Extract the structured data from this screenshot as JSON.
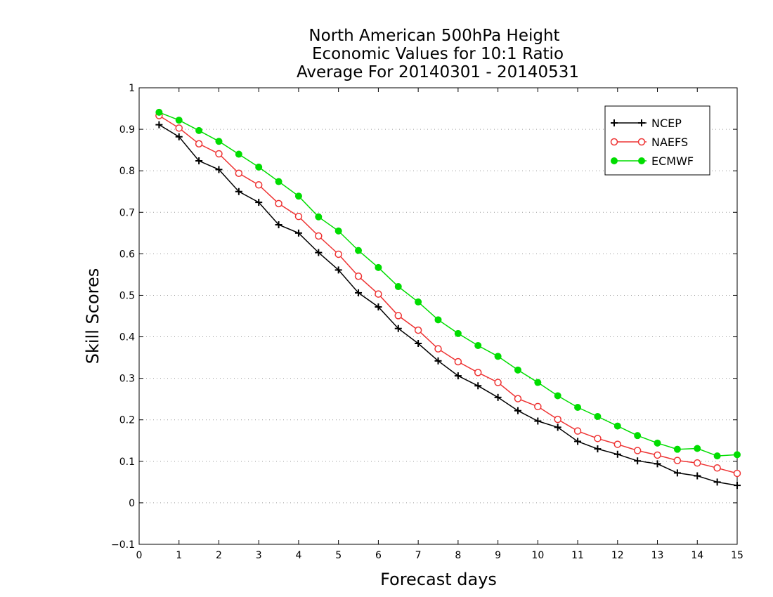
{
  "chart_data": {
    "type": "line",
    "title": [
      "North American 500hPa Height",
      "Economic Values for 10:1 Ratio",
      "Average For 20140301 - 20140531"
    ],
    "xlabel": "Forecast days",
    "ylabel": "Skill Scores",
    "xlim": [
      0,
      15
    ],
    "ylim": [
      -0.1,
      1
    ],
    "xticks": [
      0,
      1,
      2,
      3,
      4,
      5,
      6,
      7,
      8,
      9,
      10,
      11,
      12,
      13,
      14,
      15
    ],
    "yticks": [
      -0.1,
      0,
      0.1,
      0.2,
      0.3,
      0.4,
      0.5,
      0.6,
      0.7,
      0.8,
      0.9,
      1
    ],
    "grid": true,
    "legend_position": "top-right",
    "x": [
      0.5,
      1,
      1.5,
      2,
      2.5,
      3,
      3.5,
      4,
      4.5,
      5,
      5.5,
      6,
      6.5,
      7,
      7.5,
      8,
      8.5,
      9,
      9.5,
      10,
      10.5,
      11,
      11.5,
      12,
      12.5,
      13,
      13.5,
      14,
      14.5,
      15
    ],
    "series": [
      {
        "name": "NCEP",
        "color": "#000000",
        "marker": "plus",
        "values": [
          0.911,
          0.882,
          0.824,
          0.803,
          0.75,
          0.724,
          0.67,
          0.65,
          0.603,
          0.561,
          0.506,
          0.472,
          0.42,
          0.384,
          0.342,
          0.306,
          0.282,
          0.254,
          0.222,
          0.197,
          0.182,
          0.148,
          0.13,
          0.117,
          0.101,
          0.094,
          0.072,
          0.065,
          0.05,
          0.042
        ]
      },
      {
        "name": "NAEFS",
        "color": "#ee3333",
        "marker": "open-circle",
        "values": [
          0.933,
          0.903,
          0.865,
          0.841,
          0.794,
          0.766,
          0.721,
          0.69,
          0.643,
          0.599,
          0.546,
          0.503,
          0.451,
          0.416,
          0.371,
          0.34,
          0.314,
          0.29,
          0.251,
          0.232,
          0.201,
          0.173,
          0.155,
          0.141,
          0.126,
          0.115,
          0.102,
          0.096,
          0.084,
          0.071
        ]
      },
      {
        "name": "ECMWF",
        "color": "#00dd00",
        "marker": "filled-circle",
        "values": [
          0.941,
          0.922,
          0.897,
          0.871,
          0.84,
          0.809,
          0.774,
          0.739,
          0.689,
          0.655,
          0.608,
          0.567,
          0.521,
          0.484,
          0.441,
          0.408,
          0.379,
          0.353,
          0.32,
          0.29,
          0.258,
          0.23,
          0.208,
          0.185,
          0.162,
          0.144,
          0.129,
          0.131,
          0.113,
          0.116
        ]
      }
    ]
  }
}
